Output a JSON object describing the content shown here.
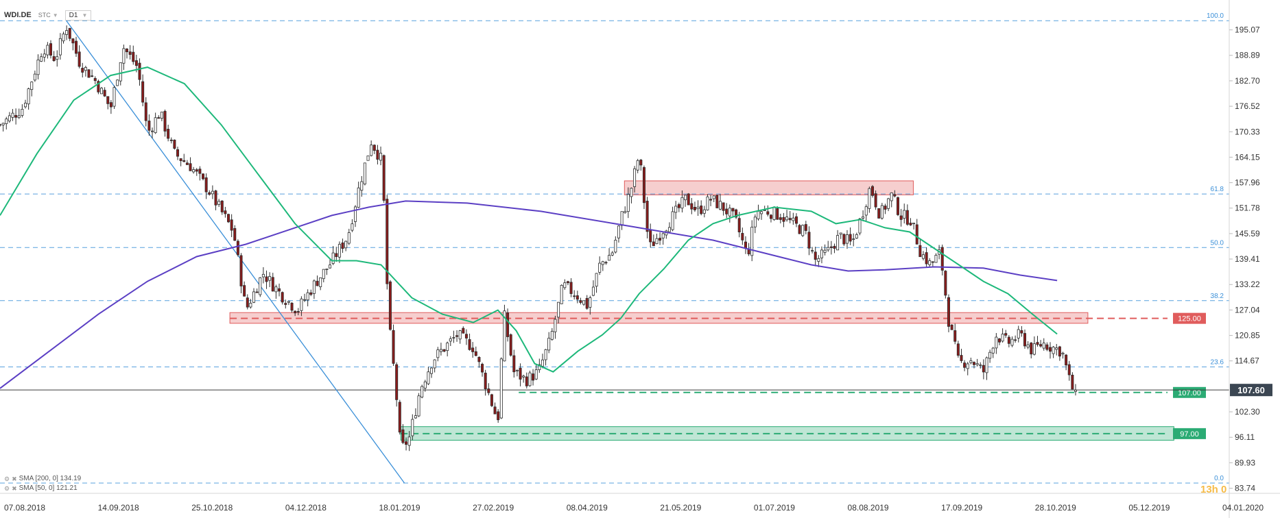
{
  "header": {
    "ticker": "WDI.DE",
    "source": "STC",
    "timeframe": "D1"
  },
  "legend": [
    {
      "label": "SMA [200, 0] 134.19",
      "color": "#5b3fc4"
    },
    {
      "label": "SMA [50, 0] 121.21",
      "color": "#1db87a"
    }
  ],
  "timer": "13h 0",
  "colors": {
    "up_candle": "#ffffff",
    "down_candle": "#8b1c1c",
    "wick": "#2b2b2b",
    "sma200": "#5b3fc4",
    "sma50": "#1db87a",
    "fib": "#3a8fd8",
    "resistance": "#e05c5c",
    "support": "#2bab74"
  },
  "chart_data": {
    "type": "line",
    "title": "",
    "xlabel": "",
    "ylabel": "",
    "ylim": [
      82.5,
      199
    ],
    "y_ticks": [
      "195.07",
      "188.89",
      "182.70",
      "176.52",
      "170.33",
      "164.15",
      "157.96",
      "151.78",
      "145.59",
      "139.41",
      "133.22",
      "127.04",
      "120.85",
      "114.67",
      "102.30",
      "96.11",
      "89.93",
      "83.74"
    ],
    "x_ticks": [
      "07.08.2018",
      "14.09.2018",
      "25.10.2018",
      "04.12.2018",
      "18.01.2019",
      "27.02.2019",
      "08.04.2019",
      "21.05.2019",
      "01.07.2019",
      "08.08.2019",
      "17.09.2019",
      "28.10.2019",
      "05.12.2019",
      "04.01.2020"
    ],
    "last_price": {
      "value": 107.6,
      "label": "107.60"
    },
    "fibonacci_levels": [
      {
        "label": "100.0",
        "value": 197.3
      },
      {
        "label": "61.8",
        "value": 155.2
      },
      {
        "label": "50.0",
        "value": 142.2
      },
      {
        "label": "38.2",
        "value": 129.3
      },
      {
        "label": "23.6",
        "value": 113.2
      },
      {
        "label": "0.0",
        "value": 85.0
      }
    ],
    "horizontal_levels": [
      {
        "label": "125.00",
        "value": 125.0,
        "color": "#e05c5c"
      },
      {
        "label": "107.00",
        "value": 107.0,
        "color": "#2bab74"
      },
      {
        "label": "97.00",
        "value": 97.0,
        "color": "#2bab74"
      }
    ],
    "zones": [
      {
        "type": "resistance",
        "x_from": 0.187,
        "x_to": 0.885,
        "y_from": 123.8,
        "y_to": 126.4
      },
      {
        "type": "resistance",
        "x_from": 0.508,
        "x_to": 0.743,
        "y_from": 155.0,
        "y_to": 158.4
      },
      {
        "type": "support",
        "x_from": 0.326,
        "x_to": 0.955,
        "y_from": 95.4,
        "y_to": 98.7
      }
    ],
    "close_series": [
      [
        0.0,
        172
      ],
      [
        0.018,
        176
      ],
      [
        0.035,
        191
      ],
      [
        0.045,
        188
      ],
      [
        0.054,
        196
      ],
      [
        0.065,
        187
      ],
      [
        0.077,
        183
      ],
      [
        0.09,
        176
      ],
      [
        0.1,
        191
      ],
      [
        0.112,
        186
      ],
      [
        0.12,
        170
      ],
      [
        0.13,
        175
      ],
      [
        0.142,
        165
      ],
      [
        0.155,
        162
      ],
      [
        0.17,
        156
      ],
      [
        0.18,
        151
      ],
      [
        0.19,
        146
      ],
      [
        0.2,
        127
      ],
      [
        0.214,
        136
      ],
      [
        0.228,
        131
      ],
      [
        0.242,
        127
      ],
      [
        0.255,
        133
      ],
      [
        0.268,
        138
      ],
      [
        0.283,
        145
      ],
      [
        0.293,
        158
      ],
      [
        0.302,
        168
      ],
      [
        0.311,
        163
      ],
      [
        0.316,
        125
      ],
      [
        0.322,
        108
      ],
      [
        0.326,
        93
      ],
      [
        0.333,
        96
      ],
      [
        0.342,
        108
      ],
      [
        0.352,
        115
      ],
      [
        0.362,
        118
      ],
      [
        0.372,
        121
      ],
      [
        0.385,
        118
      ],
      [
        0.395,
        109
      ],
      [
        0.405,
        100
      ],
      [
        0.41,
        126
      ],
      [
        0.418,
        112
      ],
      [
        0.428,
        110
      ],
      [
        0.438,
        112
      ],
      [
        0.448,
        120
      ],
      [
        0.458,
        133
      ],
      [
        0.468,
        131
      ],
      [
        0.478,
        128
      ],
      [
        0.488,
        138
      ],
      [
        0.498,
        141
      ],
      [
        0.506,
        150
      ],
      [
        0.513,
        156
      ],
      [
        0.52,
        165
      ],
      [
        0.528,
        142
      ],
      [
        0.538,
        146
      ],
      [
        0.548,
        150
      ],
      [
        0.558,
        154
      ],
      [
        0.568,
        151
      ],
      [
        0.578,
        154
      ],
      [
        0.588,
        152
      ],
      [
        0.598,
        149
      ],
      [
        0.608,
        140
      ],
      [
        0.615,
        151
      ],
      [
        0.625,
        151
      ],
      [
        0.635,
        150
      ],
      [
        0.645,
        148
      ],
      [
        0.655,
        146
      ],
      [
        0.663,
        139
      ],
      [
        0.673,
        141
      ],
      [
        0.683,
        145
      ],
      [
        0.693,
        143
      ],
      [
        0.7,
        149
      ],
      [
        0.708,
        157
      ],
      [
        0.716,
        150
      ],
      [
        0.725,
        155
      ],
      [
        0.733,
        150
      ],
      [
        0.741,
        149
      ],
      [
        0.749,
        141
      ],
      [
        0.757,
        138
      ],
      [
        0.765,
        141
      ],
      [
        0.772,
        124
      ],
      [
        0.78,
        114
      ],
      [
        0.79,
        115
      ],
      [
        0.8,
        112
      ],
      [
        0.81,
        121
      ],
      [
        0.82,
        119
      ],
      [
        0.83,
        121
      ],
      [
        0.84,
        117
      ],
      [
        0.848,
        119
      ],
      [
        0.856,
        118
      ],
      [
        0.864,
        117
      ],
      [
        0.87,
        110
      ],
      [
        0.875,
        106
      ]
    ],
    "series": [
      {
        "name": "SMA [200, 0] 134.19",
        "color": "#5b3fc4",
        "values": [
          [
            0.0,
            108
          ],
          [
            0.04,
            117
          ],
          [
            0.08,
            126
          ],
          [
            0.12,
            134
          ],
          [
            0.16,
            140
          ],
          [
            0.2,
            143
          ],
          [
            0.24,
            147
          ],
          [
            0.27,
            150
          ],
          [
            0.3,
            152
          ],
          [
            0.33,
            153.5
          ],
          [
            0.38,
            153
          ],
          [
            0.44,
            151
          ],
          [
            0.5,
            148
          ],
          [
            0.54,
            146
          ],
          [
            0.58,
            144
          ],
          [
            0.62,
            141
          ],
          [
            0.66,
            138
          ],
          [
            0.69,
            136.5
          ],
          [
            0.72,
            136.8
          ],
          [
            0.76,
            137.5
          ],
          [
            0.8,
            137.2
          ],
          [
            0.83,
            135.5
          ],
          [
            0.86,
            134.2
          ]
        ]
      },
      {
        "name": "SMA [50, 0] 121.21",
        "color": "#1db87a",
        "values": [
          [
            0.0,
            150
          ],
          [
            0.03,
            165
          ],
          [
            0.06,
            178
          ],
          [
            0.09,
            184
          ],
          [
            0.12,
            186
          ],
          [
            0.15,
            182
          ],
          [
            0.18,
            172
          ],
          [
            0.21,
            160
          ],
          [
            0.24,
            148
          ],
          [
            0.27,
            139
          ],
          [
            0.29,
            139
          ],
          [
            0.31,
            138
          ],
          [
            0.335,
            130
          ],
          [
            0.36,
            126
          ],
          [
            0.385,
            124
          ],
          [
            0.405,
            127
          ],
          [
            0.42,
            122
          ],
          [
            0.435,
            114
          ],
          [
            0.45,
            112
          ],
          [
            0.47,
            117
          ],
          [
            0.49,
            121
          ],
          [
            0.505,
            125
          ],
          [
            0.52,
            131
          ],
          [
            0.54,
            137
          ],
          [
            0.56,
            144
          ],
          [
            0.58,
            148
          ],
          [
            0.6,
            150
          ],
          [
            0.63,
            152
          ],
          [
            0.66,
            151
          ],
          [
            0.68,
            148
          ],
          [
            0.7,
            149
          ],
          [
            0.72,
            147
          ],
          [
            0.74,
            146
          ],
          [
            0.76,
            142
          ],
          [
            0.78,
            138
          ],
          [
            0.8,
            134
          ],
          [
            0.82,
            131
          ],
          [
            0.84,
            126
          ],
          [
            0.86,
            121.2
          ]
        ]
      }
    ],
    "trendline": {
      "from": [
        0.054,
        197.3
      ],
      "to": [
        0.329,
        85.0
      ]
    },
    "legend": "bottom-left"
  }
}
